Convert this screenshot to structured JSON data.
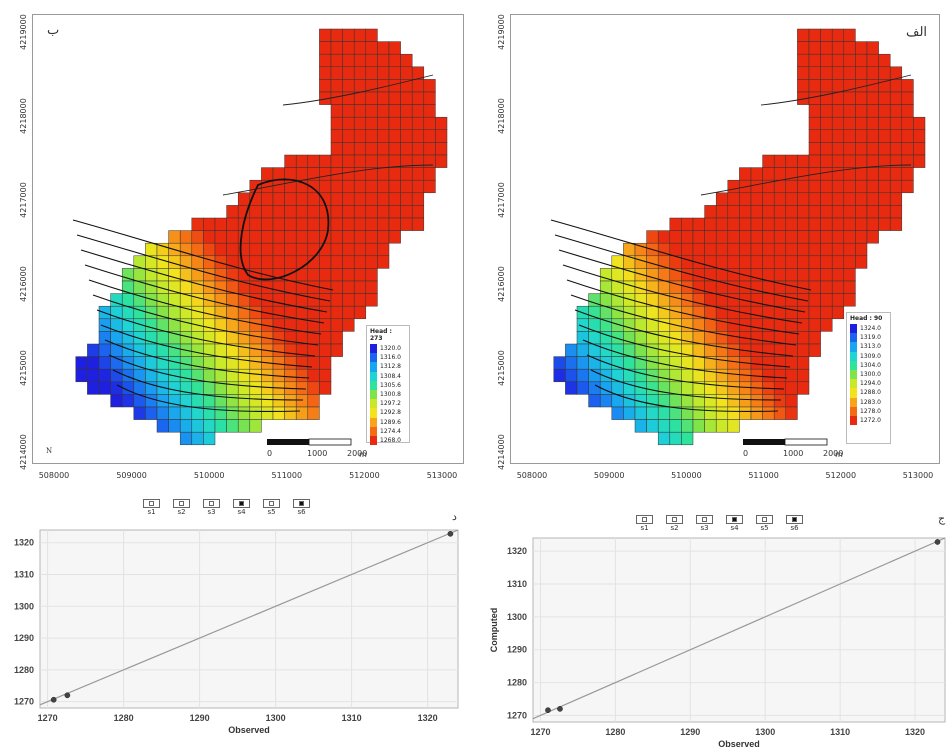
{
  "maps": {
    "left": {
      "letter": "ب",
      "legend_title": "Head : 273",
      "legend_values": [
        "1320.0",
        "1316.0",
        "1312.8",
        "1308.4",
        "1305.6",
        "1300.8",
        "1297.2",
        "1292.8",
        "1289.6",
        "1274.4",
        "1268.0"
      ],
      "bottom_left_mark": "N"
    },
    "right": {
      "letter": "الف",
      "legend_title": "Head : 90",
      "legend_values": [
        "1324.0",
        "1319.0",
        "1313.0",
        "1309.0",
        "1304.0",
        "1300.0",
        "1294.0",
        "1288.0",
        "1283.0",
        "1278.0",
        "1272.0"
      ]
    },
    "x_ticks": [
      "508000",
      "509000",
      "510000",
      "511000",
      "512000",
      "513000"
    ],
    "y_ticks": [
      "4214000",
      "4215000",
      "4216000",
      "4217000",
      "4218000",
      "4219000"
    ],
    "scalebar": {
      "labels": [
        "0",
        "1000",
        "2000"
      ],
      "unit": "m"
    },
    "legend_colors": [
      "#1f1fe0",
      "#1b63f0",
      "#19a6f0",
      "#1fd4d4",
      "#2ee39a",
      "#7fe34a",
      "#c6ea2a",
      "#f3e31c",
      "#f7a41a",
      "#f56a14",
      "#e82b10"
    ]
  },
  "scatters": {
    "left": {
      "letter": "د"
    },
    "right": {
      "letter": "ج"
    },
    "wells": [
      {
        "label": "s1",
        "on": false
      },
      {
        "label": "s2",
        "on": false
      },
      {
        "label": "s3",
        "on": false
      },
      {
        "label": "s4",
        "on": true
      },
      {
        "label": "s5",
        "on": false
      },
      {
        "label": "s6",
        "on": true
      }
    ],
    "watermark": "..."
  },
  "chart_data": [
    {
      "type": "scatter",
      "title": "",
      "xlabel": "Observed",
      "ylabel": "",
      "xlim": [
        1269,
        1324
      ],
      "ylim": [
        1268,
        1324
      ],
      "xticks": [
        1270,
        1280,
        1290,
        1300,
        1310,
        1320
      ],
      "yticks": [
        1270,
        1280,
        1290,
        1300,
        1310,
        1320
      ],
      "line": [
        [
          1269,
          1269
        ],
        [
          1324,
          1324
        ]
      ],
      "points": [
        [
          1270.8,
          1270.6
        ],
        [
          1272.6,
          1272.0
        ],
        [
          1323.0,
          1322.8
        ]
      ]
    },
    {
      "type": "scatter",
      "title": "",
      "xlabel": "Observed",
      "ylabel": "Computed",
      "xlim": [
        1269,
        1324
      ],
      "ylim": [
        1268,
        1324
      ],
      "xticks": [
        1270,
        1280,
        1290,
        1300,
        1310,
        1320
      ],
      "yticks": [
        1270,
        1280,
        1290,
        1300,
        1310,
        1320
      ],
      "line": [
        [
          1269,
          1269
        ],
        [
          1324,
          1324
        ]
      ],
      "points": [
        [
          1271.0,
          1271.6
        ],
        [
          1272.6,
          1272.0
        ],
        [
          1323.0,
          1322.8
        ]
      ]
    }
  ]
}
